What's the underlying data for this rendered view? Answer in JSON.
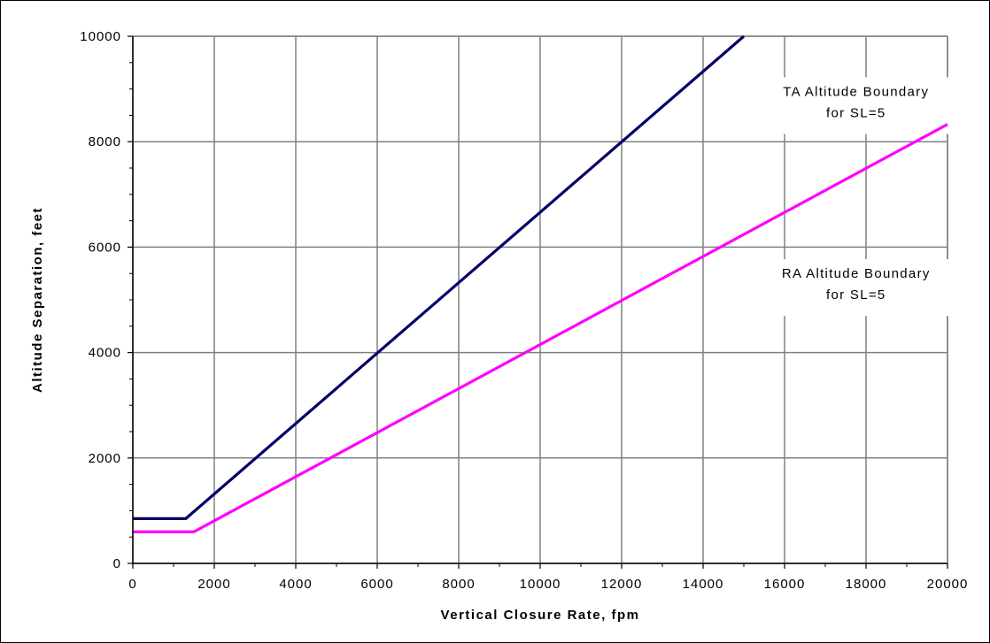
{
  "chart_data": {
    "type": "line",
    "title": "",
    "xlabel": "Vertical Closure Rate, fpm",
    "ylabel": "Altitude Separation, feet",
    "xlim": [
      0,
      20000
    ],
    "ylim": [
      0,
      10000
    ],
    "xticks": [
      0,
      2000,
      4000,
      6000,
      8000,
      10000,
      12000,
      14000,
      16000,
      18000,
      20000
    ],
    "yticks": [
      0,
      2000,
      4000,
      6000,
      8000,
      10000
    ],
    "grid": true,
    "legend": "none",
    "series": [
      {
        "color": "#000066",
        "x": [
          0,
          1300,
          15000
        ],
        "y": [
          850,
          850,
          10000
        ]
      },
      {
        "color": "#ff00ff",
        "x": [
          0,
          1500,
          20000
        ],
        "y": [
          600,
          600,
          8330
        ]
      }
    ],
    "annotations": [
      {
        "lines": [
          "TA Altitude Boundary",
          "for SL=5"
        ],
        "x": 15300,
        "y": 8700
      },
      {
        "lines": [
          "RA Altitude Boundary",
          "for SL=5"
        ],
        "x": 15300,
        "y": 5250
      }
    ]
  }
}
